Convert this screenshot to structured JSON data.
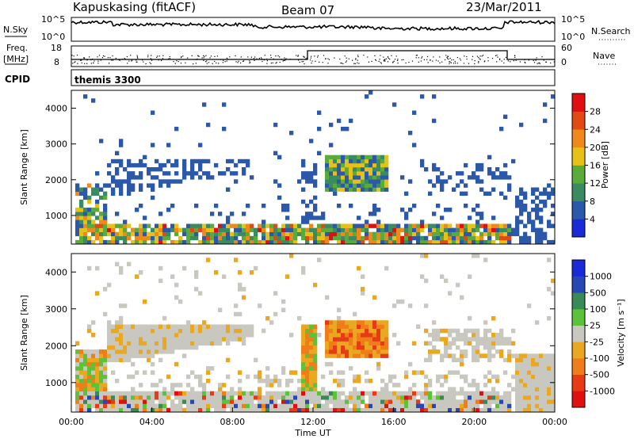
{
  "header": {
    "station": "Kapuskasing (fitACF)",
    "beam": "Beam 07",
    "date": "23/Mar/2011"
  },
  "panels": {
    "nsky": {
      "left_label": "N.Sky",
      "right_label": "N.Search",
      "y_ticks": [
        "10^5",
        "10^0"
      ],
      "right_ticks": [
        "10^5",
        "10^0"
      ]
    },
    "freq": {
      "left_label_1": "Freq.",
      "left_label_2": "[MHz]",
      "right_label": "Nave",
      "y_ticks": [
        "18",
        "8"
      ],
      "right_ticks": [
        "60",
        "0"
      ]
    },
    "cpid": {
      "left_label": "CPID",
      "program": "themis 3300"
    }
  },
  "chart_data": [
    {
      "type": "heatmap",
      "name": "power",
      "ylabel": "Slant Range [km]",
      "ylim": [
        200,
        4500
      ],
      "yticks": [
        "1000",
        "2000",
        "3000",
        "4000"
      ],
      "colorbar": {
        "label": "Power [dB]",
        "ticks": [
          "4",
          "8",
          "12",
          "16",
          "20",
          "24",
          "28"
        ],
        "colors": [
          "#1a2ad8",
          "#2b58a8",
          "#3b8b62",
          "#5aaa3c",
          "#e6c218",
          "#ef8a1a",
          "#e24a14",
          "#e01010"
        ]
      }
    },
    {
      "type": "heatmap",
      "name": "velocity",
      "ylabel": "Slant Range [km]",
      "ylim": [
        200,
        4500
      ],
      "yticks": [
        "1000",
        "2000",
        "3000",
        "4000"
      ],
      "xlabel": "Time UT",
      "xticks": [
        "00:00",
        "04:00",
        "08:00",
        "12:00",
        "16:00",
        "20:00",
        "00:00"
      ],
      "colorbar": {
        "label": "Velocity [m s⁻¹]",
        "ticks": [
          "1000",
          "500",
          "100",
          "25",
          "-25",
          "-100",
          "-500",
          "-1000"
        ],
        "colors": [
          "#1a2ad8",
          "#2748b4",
          "#3a8a58",
          "#5cc23a",
          "#c8c8c0",
          "#e9a820",
          "#ef7d18",
          "#e83a14",
          "#e01010"
        ]
      }
    }
  ]
}
